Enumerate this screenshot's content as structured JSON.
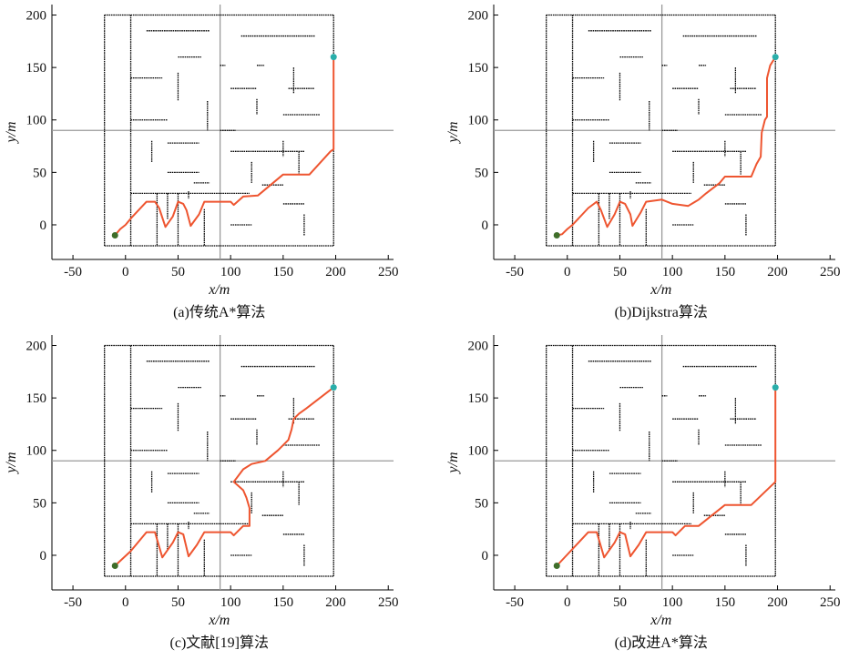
{
  "chart_data": [
    {
      "type": "line",
      "caption": "(a)传统A*算法",
      "xlabel": "x/m",
      "ylabel": "y/m",
      "xlim": [
        -70,
        255
      ],
      "ylim": [
        -33,
        210
      ],
      "xticks": [
        -50,
        0,
        50,
        100,
        150,
        200,
        250
      ],
      "yticks": [
        0,
        50,
        100,
        150,
        200
      ],
      "start": [
        -10,
        -10
      ],
      "goal": [
        198,
        160
      ],
      "path": [
        [
          -10,
          -10
        ],
        [
          -5,
          -4
        ],
        [
          0,
          0
        ],
        [
          5,
          6
        ],
        [
          20,
          22
        ],
        [
          28,
          22
        ],
        [
          32,
          16
        ],
        [
          38,
          -2
        ],
        [
          45,
          8
        ],
        [
          50,
          22
        ],
        [
          55,
          20
        ],
        [
          58,
          14
        ],
        [
          62,
          -1
        ],
        [
          70,
          10
        ],
        [
          75,
          22
        ],
        [
          85,
          22
        ],
        [
          100,
          22
        ],
        [
          103,
          19
        ],
        [
          112,
          27
        ],
        [
          126,
          28
        ],
        [
          150,
          48
        ],
        [
          175,
          48
        ],
        [
          195,
          70
        ],
        [
          198,
          72
        ],
        [
          198,
          160
        ]
      ]
    },
    {
      "type": "line",
      "caption": "(b)Dijkstra算法",
      "xlabel": "x/m",
      "ylabel": "y/m",
      "xlim": [
        -70,
        255
      ],
      "ylim": [
        -33,
        210
      ],
      "xticks": [
        -50,
        0,
        50,
        100,
        150,
        200,
        250
      ],
      "yticks": [
        0,
        50,
        100,
        150,
        200
      ],
      "start": [
        -10,
        -10
      ],
      "goal": [
        198,
        160
      ],
      "path": [
        [
          -10,
          -10
        ],
        [
          -5,
          -9
        ],
        [
          0,
          -4
        ],
        [
          5,
          0
        ],
        [
          20,
          16
        ],
        [
          28,
          22
        ],
        [
          32,
          14
        ],
        [
          38,
          -2
        ],
        [
          45,
          10
        ],
        [
          50,
          22
        ],
        [
          55,
          20
        ],
        [
          60,
          10
        ],
        [
          62,
          -1
        ],
        [
          70,
          12
        ],
        [
          75,
          22
        ],
        [
          90,
          24
        ],
        [
          100,
          20
        ],
        [
          115,
          18
        ],
        [
          125,
          24
        ],
        [
          132,
          30
        ],
        [
          145,
          40
        ],
        [
          150,
          46
        ],
        [
          175,
          46
        ],
        [
          180,
          58
        ],
        [
          184,
          65
        ],
        [
          185,
          88
        ],
        [
          188,
          100
        ],
        [
          190,
          103
        ],
        [
          190,
          140
        ],
        [
          193,
          152
        ],
        [
          198,
          160
        ]
      ]
    },
    {
      "type": "line",
      "caption": "(c)文献[19]算法",
      "xlabel": "x/m",
      "ylabel": "y/m",
      "xlim": [
        -70,
        255
      ],
      "ylim": [
        -33,
        210
      ],
      "xticks": [
        -50,
        0,
        50,
        100,
        150,
        200,
        250
      ],
      "yticks": [
        0,
        50,
        100,
        150,
        200
      ],
      "start": [
        -10,
        -10
      ],
      "goal": [
        198,
        160
      ],
      "path": [
        [
          -10,
          -10
        ],
        [
          5,
          4
        ],
        [
          20,
          22
        ],
        [
          28,
          22
        ],
        [
          35,
          -2
        ],
        [
          45,
          12
        ],
        [
          50,
          22
        ],
        [
          55,
          20
        ],
        [
          60,
          -1
        ],
        [
          68,
          10
        ],
        [
          75,
          22
        ],
        [
          100,
          22
        ],
        [
          103,
          19
        ],
        [
          112,
          28
        ],
        [
          118,
          28
        ],
        [
          118,
          45
        ],
        [
          115,
          55
        ],
        [
          112,
          62
        ],
        [
          103,
          70
        ],
        [
          112,
          82
        ],
        [
          120,
          87
        ],
        [
          133,
          90
        ],
        [
          145,
          100
        ],
        [
          155,
          110
        ],
        [
          158,
          120
        ],
        [
          160,
          130
        ],
        [
          165,
          135
        ],
        [
          172,
          140
        ],
        [
          198,
          160
        ]
      ]
    },
    {
      "type": "line",
      "caption": "(d)改进A*算法",
      "xlabel": "x/m",
      "ylabel": "y/m",
      "xlim": [
        -70,
        255
      ],
      "ylim": [
        -33,
        210
      ],
      "xticks": [
        -50,
        0,
        50,
        100,
        150,
        200,
        250
      ],
      "yticks": [
        0,
        50,
        100,
        150,
        200
      ],
      "start": [
        -10,
        -10
      ],
      "goal": [
        198,
        160
      ],
      "path": [
        [
          -10,
          -10
        ],
        [
          20,
          22
        ],
        [
          28,
          22
        ],
        [
          35,
          -2
        ],
        [
          45,
          12
        ],
        [
          50,
          22
        ],
        [
          55,
          20
        ],
        [
          60,
          -1
        ],
        [
          68,
          10
        ],
        [
          75,
          22
        ],
        [
          100,
          22
        ],
        [
          103,
          19
        ],
        [
          112,
          28
        ],
        [
          125,
          28
        ],
        [
          150,
          48
        ],
        [
          175,
          48
        ],
        [
          198,
          70
        ],
        [
          198,
          160
        ]
      ]
    }
  ],
  "map": {
    "walls": [
      [
        -20,
        -20,
        198,
        -20
      ],
      [
        -20,
        -20,
        -20,
        200
      ],
      [
        -20,
        200,
        198,
        200
      ],
      [
        198,
        200,
        198,
        -20
      ],
      [
        5,
        -20,
        5,
        200
      ],
      [
        5,
        30,
        118,
        30
      ],
      [
        20,
        185,
        80,
        185
      ],
      [
        110,
        180,
        180,
        180
      ],
      [
        50,
        160,
        72,
        160
      ],
      [
        90,
        152,
        95,
        152
      ],
      [
        125,
        152,
        132,
        152
      ],
      [
        5,
        140,
        35,
        140
      ],
      [
        50,
        145,
        50,
        118
      ],
      [
        160,
        150,
        160,
        125
      ],
      [
        100,
        130,
        125,
        130
      ],
      [
        155,
        130,
        180,
        130
      ],
      [
        125,
        120,
        125,
        105
      ],
      [
        5,
        100,
        40,
        100
      ],
      [
        78,
        118,
        78,
        90
      ],
      [
        90,
        90,
        105,
        90
      ],
      [
        150,
        105,
        185,
        105
      ],
      [
        40,
        78,
        70,
        78
      ],
      [
        25,
        80,
        25,
        60
      ],
      [
        100,
        70,
        170,
        70
      ],
      [
        150,
        80,
        150,
        65
      ],
      [
        165,
        70,
        165,
        48
      ],
      [
        40,
        50,
        70,
        50
      ],
      [
        120,
        60,
        120,
        40
      ],
      [
        65,
        40,
        80,
        40
      ],
      [
        130,
        38,
        150,
        38
      ],
      [
        60,
        32,
        60,
        25
      ],
      [
        30,
        30,
        30,
        -20
      ],
      [
        50,
        30,
        50,
        -20
      ],
      [
        40,
        30,
        40,
        5
      ],
      [
        100,
        0,
        120,
        0
      ],
      [
        150,
        20,
        170,
        20
      ],
      [
        170,
        10,
        170,
        -10
      ],
      [
        75,
        15,
        75,
        -20
      ]
    ],
    "hline_y": 90,
    "vline_x": 90,
    "colors": {
      "path": "#ee5530",
      "start": "#3f6e2a",
      "goal": "#2aaeaa",
      "wall": "#000000",
      "crosshair": "#9a9a9a"
    }
  }
}
